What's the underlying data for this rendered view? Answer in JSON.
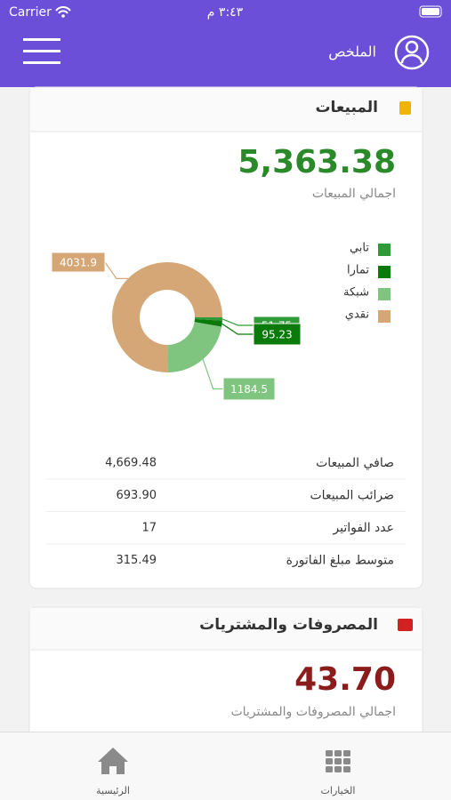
{
  "status": {
    "carrier": "Carrier",
    "time": "٣:٤٣ م"
  },
  "header": {
    "title": "الملخص"
  },
  "sales": {
    "title": "المبيعات",
    "total": "5,363.38",
    "total_label": "اجمالي المبيعات",
    "rows": [
      {
        "label": "صافي المبيعات",
        "value": "4,669.48"
      },
      {
        "label": "ضرائب المبيعات",
        "value": "693.90"
      },
      {
        "label": "عدد الفواتير",
        "value": "17"
      },
      {
        "label": "متوسط مبلغ الفاتورة",
        "value": "315.49"
      }
    ]
  },
  "chart_data": {
    "type": "pie",
    "categories": [
      "تابي",
      "تمارا",
      "شبكة",
      "نقدي"
    ],
    "values": [
      51.75,
      95.23,
      1184.5,
      4031.9
    ],
    "colors": [
      "#2f9a37",
      "#0a7a0a",
      "#7fc47f",
      "#d5a676"
    ],
    "donut": true
  },
  "expenses": {
    "title": "المصروفات والمشتريات",
    "total": "43.70",
    "total_label": "اجمالي المصروفات والمشتريات"
  },
  "tabs": [
    {
      "label": "الرئيسية"
    },
    {
      "label": "الخيارات"
    }
  ]
}
